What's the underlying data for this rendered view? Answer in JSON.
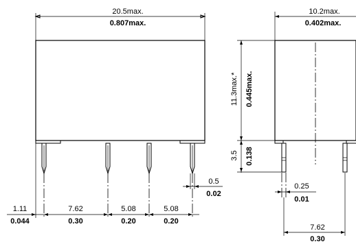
{
  "front_view": {
    "width_mm": "20.5max.",
    "width_in": "0.807max.",
    "pin_offset_mm": "1.11",
    "pin_offset_in": "0.044",
    "pitch1_mm": "7.62",
    "pitch1_in": "0.30",
    "pitch2_mm": "5.08",
    "pitch2_in": "0.20",
    "pitch3_mm": "5.08",
    "pitch3_in": "0.20",
    "pin_width_mm": "0.5",
    "pin_width_in": "0.02"
  },
  "side_view": {
    "width_mm": "10.2max.",
    "width_in": "0.402max.",
    "height_mm": "11.3max.*",
    "height_in": "0.445max.",
    "pin_length_mm": "3.5",
    "pin_length_in": "0.138",
    "pin_thickness_mm": "0.25",
    "pin_thickness_in": "0.01",
    "row_spacing_mm": "7.62",
    "row_spacing_in": "0.30"
  }
}
